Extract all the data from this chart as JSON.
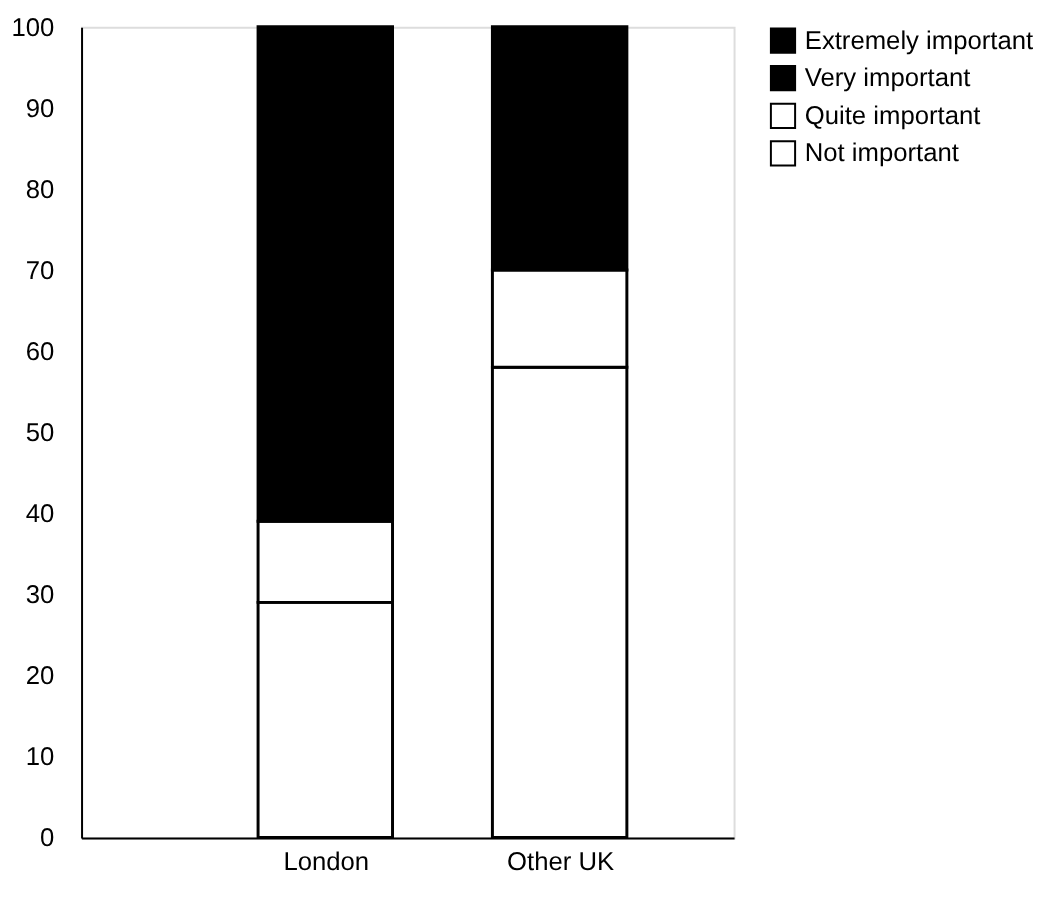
{
  "chart_data": {
    "type": "bar",
    "stacked": true,
    "categories": [
      "London",
      "Other UK"
    ],
    "series": [
      {
        "name": "Not important",
        "color": "#ffffff",
        "values": [
          29,
          58
        ]
      },
      {
        "name": "Quite important",
        "color": "#ffffff",
        "values": [
          10,
          12
        ]
      },
      {
        "name": "Very important",
        "color": "#000000",
        "values": [
          null,
          null
        ]
      },
      {
        "name": "Extremely important",
        "color": "#000000",
        "values": [
          61,
          30
        ]
      }
    ],
    "ylim": [
      0,
      100
    ],
    "yticks": [
      0,
      10,
      20,
      30,
      40,
      50,
      60,
      70,
      80,
      90,
      100
    ],
    "grid": false,
    "legend": "right"
  }
}
